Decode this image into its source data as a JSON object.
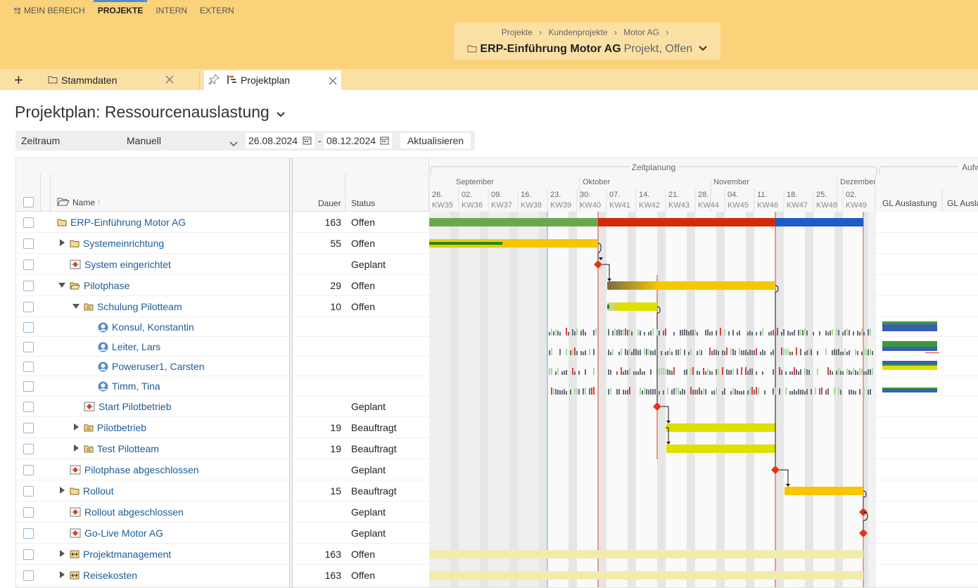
{
  "nav": {
    "items": [
      "MEIN BEREICH",
      "PROJEKTE",
      "INTERN",
      "EXTERN"
    ]
  },
  "breadcrumb": {
    "path": [
      "Projekte",
      "Kundenprojekte",
      "Motor AG"
    ],
    "sep": "›",
    "title": "ERP-Einführung Motor AG",
    "subtitle": "Projekt, Offen"
  },
  "tabs": {
    "add": "+",
    "items": [
      {
        "label": "Stammdaten"
      },
      {
        "label": "Projektplan"
      }
    ]
  },
  "page": {
    "title": "Projektplan: Ressourcenauslastung"
  },
  "filter": {
    "label": "Zeitraum",
    "mode": "Manuell",
    "from": "26.08.2024",
    "dash": "-",
    "to": "08.12.2024",
    "button": "Aktualisieren"
  },
  "columns": {
    "name": "Name",
    "dauer": "Dauer",
    "status": "Status",
    "zeitplanung": "Zeitplanung",
    "aufw": "Aufw",
    "gl1": "GL Auslastung",
    "gl2": "GL Ausla"
  },
  "months": [
    "September",
    "Oktober",
    "November",
    "Dezember"
  ],
  "weeks": [
    {
      "d": "26.",
      "kw": "KW35"
    },
    {
      "d": "02.",
      "kw": "KW36"
    },
    {
      "d": "09.",
      "kw": "KW37"
    },
    {
      "d": "16.",
      "kw": "KW38"
    },
    {
      "d": "23.",
      "kw": "KW39"
    },
    {
      "d": "30.",
      "kw": "KW40"
    },
    {
      "d": "07.",
      "kw": "KW41"
    },
    {
      "d": "14.",
      "kw": "KW42"
    },
    {
      "d": "21.",
      "kw": "KW43"
    },
    {
      "d": "28.",
      "kw": "KW44"
    },
    {
      "d": "04.",
      "kw": "KW45"
    },
    {
      "d": "11.",
      "kw": "KW46"
    },
    {
      "d": "18.",
      "kw": "KW47"
    },
    {
      "d": "25.",
      "kw": "KW48"
    },
    {
      "d": "02.",
      "kw": "KW49"
    }
  ],
  "rows": [
    {
      "name": "ERP-Einführung Motor AG",
      "dauer": "163",
      "status": "Offen",
      "icon": "folder-icon"
    },
    {
      "name": "Systemeinrichtung",
      "dauer": "55",
      "status": "Offen",
      "icon": "folder-icon"
    },
    {
      "name": "System eingerichtet",
      "dauer": "",
      "status": "Geplant",
      "icon": "milestone-icon"
    },
    {
      "name": "Pilotphase",
      "dauer": "29",
      "status": "Offen",
      "icon": "folder-open-icon"
    },
    {
      "name": "Schulung Pilotteam",
      "dauer": "10",
      "status": "Offen",
      "icon": "task-icon"
    },
    {
      "name": "Konsul, Konstantin",
      "dauer": "",
      "status": "",
      "icon": "person-icon"
    },
    {
      "name": "Leiter, Lars",
      "dauer": "",
      "status": "",
      "icon": "person-icon"
    },
    {
      "name": "Poweruser1, Carsten",
      "dauer": "",
      "status": "",
      "icon": "person-icon"
    },
    {
      "name": "Timm, Tina",
      "dauer": "",
      "status": "",
      "icon": "person-icon"
    },
    {
      "name": "Start Pilotbetrieb",
      "dauer": "",
      "status": "Geplant",
      "icon": "milestone-icon"
    },
    {
      "name": "Pilotbetrieb",
      "dauer": "19",
      "status": "Beauftragt",
      "icon": "task-icon"
    },
    {
      "name": "Test Pilotteam",
      "dauer": "19",
      "status": "Beauftragt",
      "icon": "task-icon"
    },
    {
      "name": "Pilotphase abgeschlossen",
      "dauer": "",
      "status": "Geplant",
      "icon": "milestone-icon"
    },
    {
      "name": "Rollout",
      "dauer": "15",
      "status": "Beauftragt",
      "icon": "folder-icon"
    },
    {
      "name": "Rollout abgeschlossen",
      "dauer": "",
      "status": "Geplant",
      "icon": "milestone-icon"
    },
    {
      "name": "Go-Live Motor AG",
      "dauer": "",
      "status": "Geplant",
      "icon": "milestone-icon"
    },
    {
      "name": "Projektmanagement",
      "dauer": "163",
      "status": "Offen",
      "icon": "recurring-icon"
    },
    {
      "name": "Reisekosten",
      "dauer": "163",
      "status": "Offen",
      "icon": "recurring-icon"
    }
  ],
  "colors": {
    "header": "#fad27a",
    "link": "#1c5c99",
    "accent": "#4a8fd0"
  }
}
